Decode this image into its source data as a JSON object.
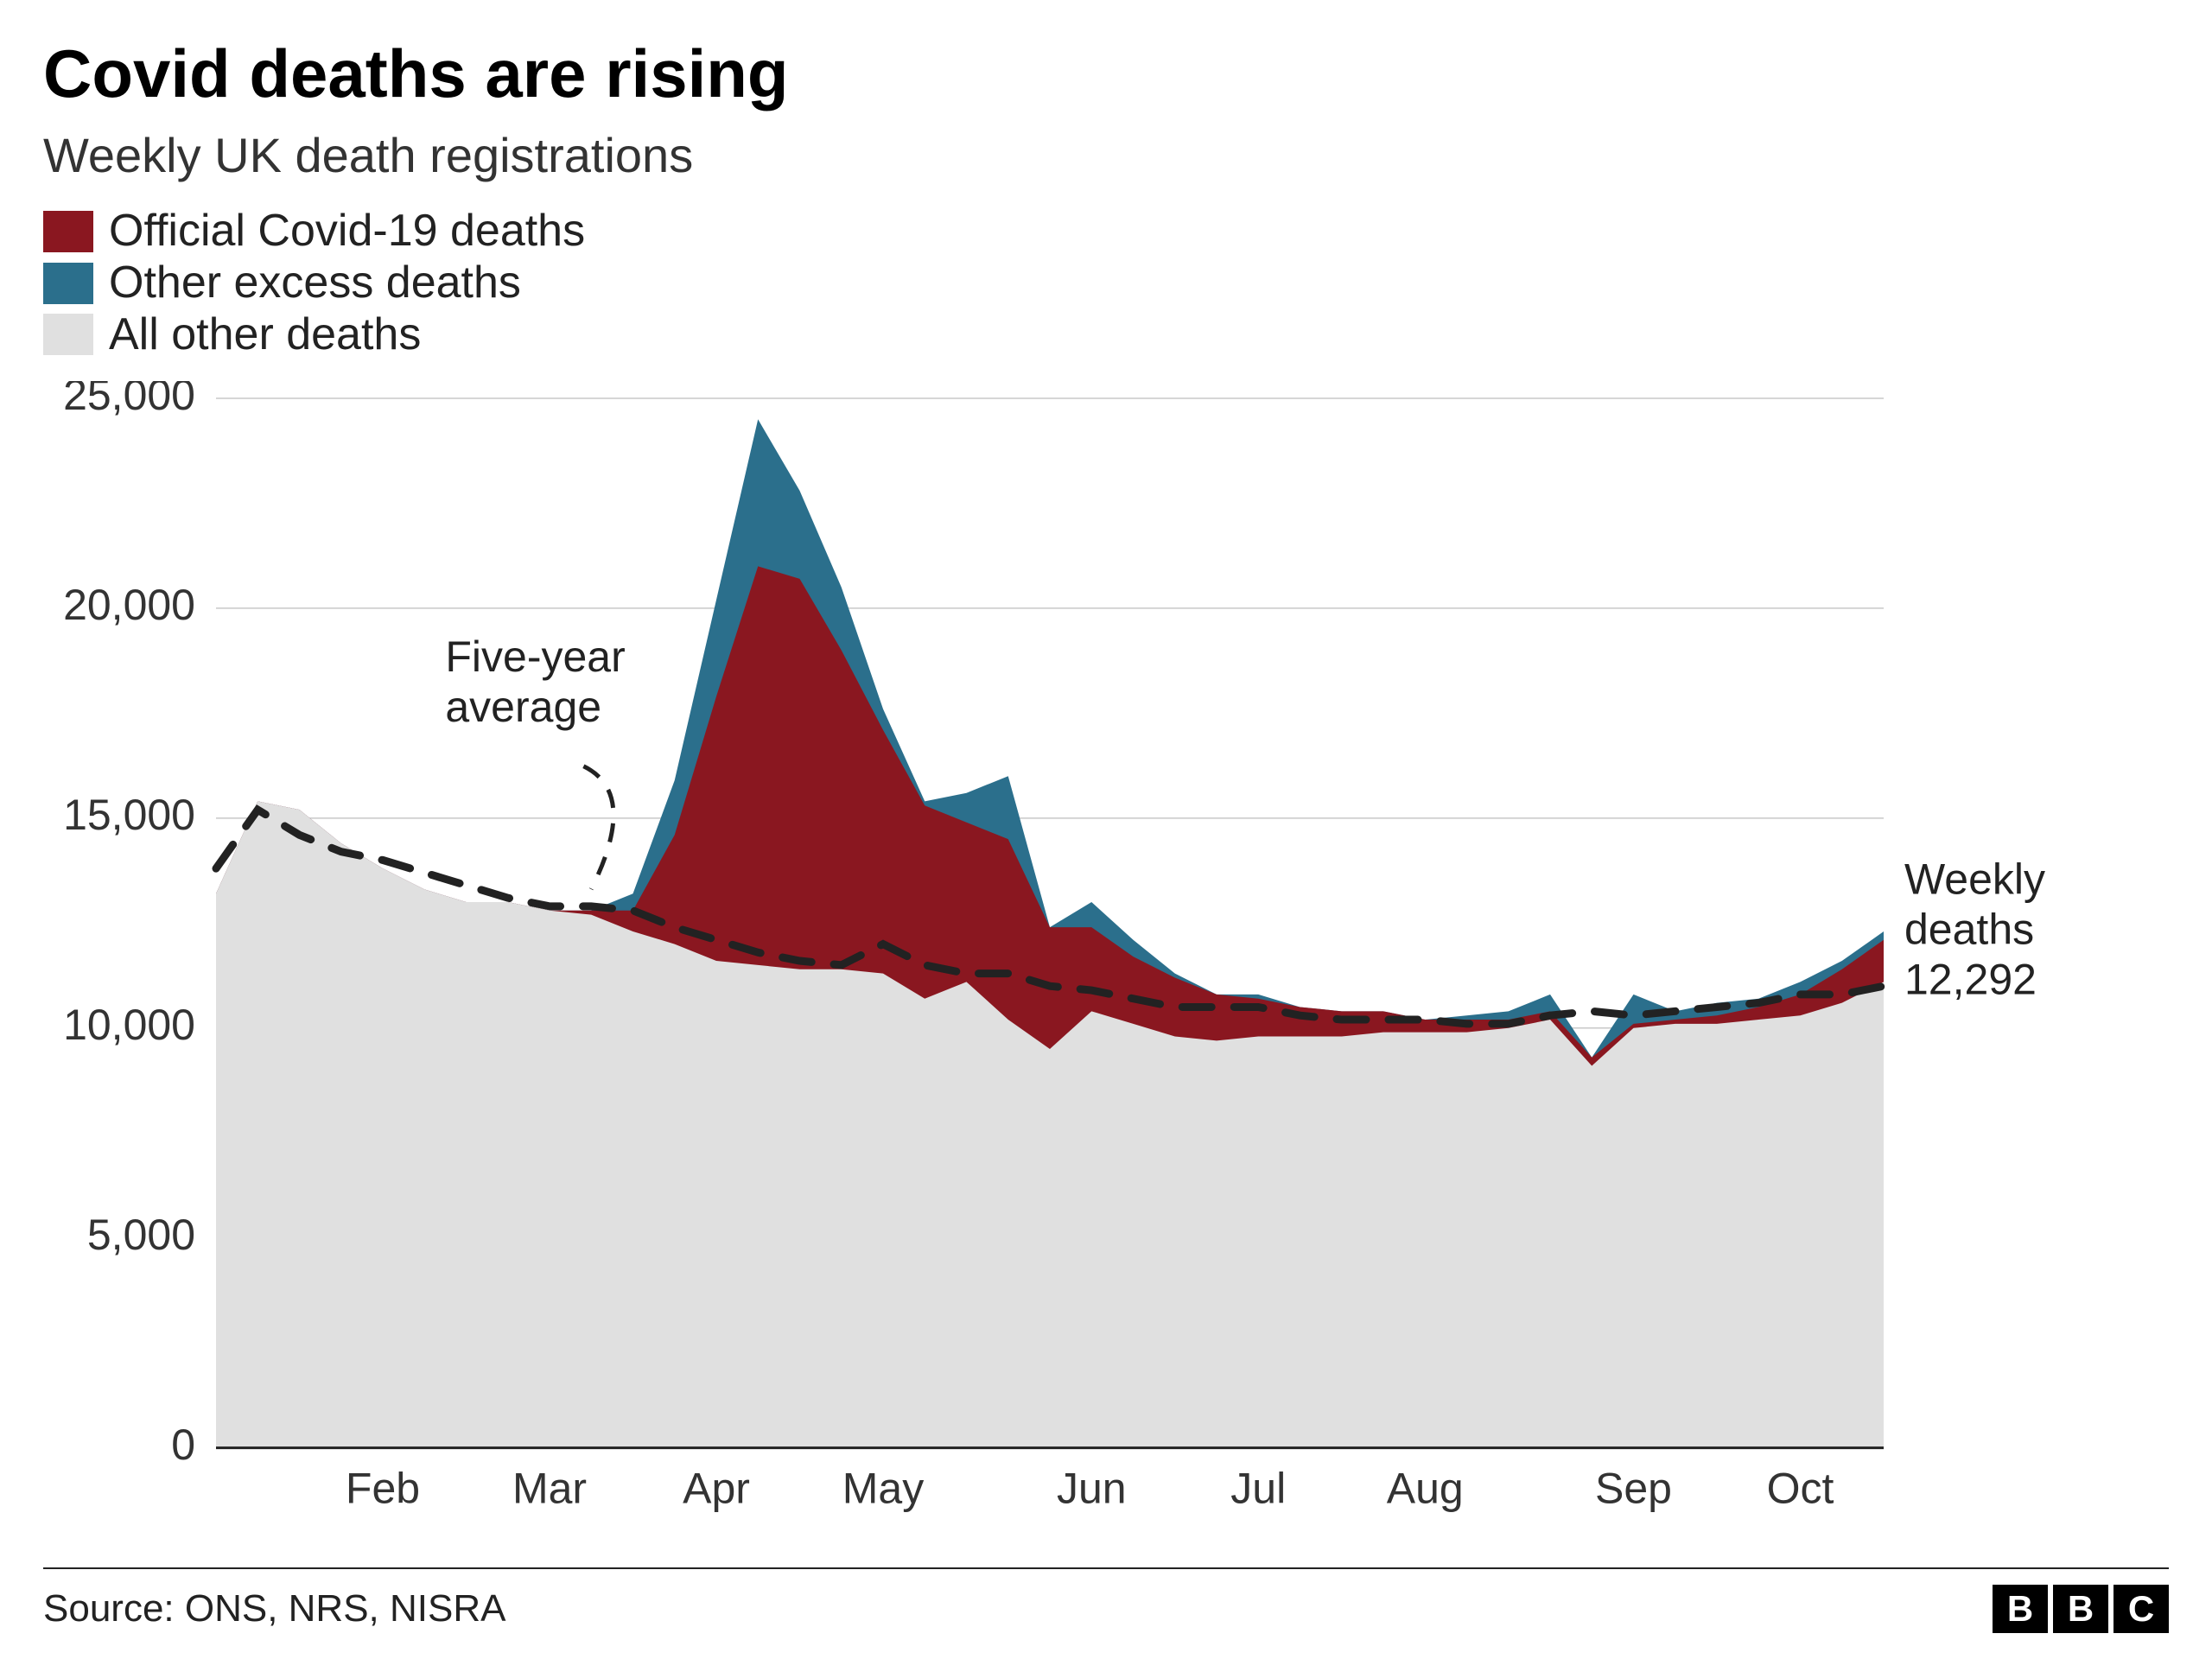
{
  "title": "Covid deaths are rising",
  "subtitle": "Weekly UK death registrations",
  "legend": {
    "items": [
      {
        "color": "#8a1720",
        "label": "Official Covid-19 deaths"
      },
      {
        "color": "#2b6f8c",
        "label": "Other excess deaths"
      },
      {
        "color": "#e0e0e0",
        "label": "All other deaths"
      }
    ]
  },
  "chart": {
    "type": "stacked-area-with-reference-line",
    "background_color": "#ffffff",
    "grid_color": "#c8c8c8",
    "axis_color": "#222222",
    "ylim": [
      0,
      25000
    ],
    "yticks": [
      0,
      5000,
      10000,
      15000,
      20000,
      25000
    ],
    "ytick_labels": [
      "0",
      "5,000",
      "10,000",
      "15,000",
      "20,000",
      "25,000"
    ],
    "x_count": 41,
    "x_month_ticks": [
      {
        "index": 4,
        "label": "Feb"
      },
      {
        "index": 8,
        "label": "Mar"
      },
      {
        "index": 12,
        "label": "Apr"
      },
      {
        "index": 16,
        "label": "May"
      },
      {
        "index": 21,
        "label": "Jun"
      },
      {
        "index": 25,
        "label": "Jul"
      },
      {
        "index": 29,
        "label": "Aug"
      },
      {
        "index": 34,
        "label": "Sep"
      },
      {
        "index": 38,
        "label": "Oct"
      }
    ],
    "series": {
      "all_other": {
        "color": "#e0e0e0",
        "values": [
          13200,
          15400,
          15200,
          14400,
          13800,
          13300,
          13000,
          13000,
          12800,
          12700,
          12300,
          12000,
          11600,
          11500,
          11400,
          11400,
          11300,
          10700,
          11100,
          10200,
          9500,
          10400,
          10100,
          9800,
          9700,
          9800,
          9800,
          9800,
          9900,
          9900,
          9900,
          10000,
          10200,
          9100,
          10000,
          10100,
          10100,
          10200,
          10300,
          10600,
          11100
        ]
      },
      "covid": {
        "color": "#8a1720",
        "values": [
          0,
          0,
          0,
          0,
          0,
          0,
          0,
          0,
          0,
          100,
          500,
          2600,
          6300,
          9500,
          9300,
          7600,
          5800,
          4600,
          3800,
          4300,
          2900,
          2000,
          1600,
          1400,
          1100,
          900,
          700,
          600,
          500,
          300,
          300,
          200,
          200,
          200,
          100,
          100,
          200,
          300,
          500,
          800,
          1000
        ]
      },
      "other_excess": {
        "color": "#2b6f8c",
        "values": [
          0,
          0,
          0,
          0,
          0,
          0,
          0,
          0,
          0,
          0,
          400,
          1300,
          2300,
          3500,
          2100,
          1500,
          500,
          100,
          700,
          1500,
          0,
          600,
          400,
          100,
          0,
          100,
          0,
          0,
          0,
          0,
          100,
          200,
          400,
          0,
          700,
          200,
          300,
          200,
          300,
          200,
          200
        ]
      },
      "five_year_avg": {
        "label": "Five-year average",
        "color": "#222222",
        "dash": "34 26",
        "stroke_width": 9,
        "values": [
          13800,
          15200,
          14600,
          14200,
          14000,
          13700,
          13400,
          13100,
          12900,
          12900,
          12800,
          12400,
          12100,
          11800,
          11600,
          11500,
          12000,
          11500,
          11300,
          11300,
          11000,
          10900,
          10700,
          10500,
          10500,
          10500,
          10300,
          10200,
          10200,
          10200,
          10100,
          10100,
          10300,
          10400,
          10300,
          10400,
          10500,
          10600,
          10800,
          10800,
          11000
        ]
      }
    },
    "callout_avg": {
      "text_lines": [
        "Five-year",
        "average"
      ],
      "text_x_index": 5.5,
      "text_y_value": 18500,
      "pointer_to_index": 9,
      "pointer_to_value": 13100
    },
    "end_label": {
      "text_lines": [
        "Weekly",
        "deaths",
        "12,292"
      ],
      "value": 12292,
      "y_value": 13200
    }
  },
  "footer": {
    "source": "Source: ONS, NRS, NISRA",
    "logo_letters": [
      "B",
      "B",
      "C"
    ]
  }
}
